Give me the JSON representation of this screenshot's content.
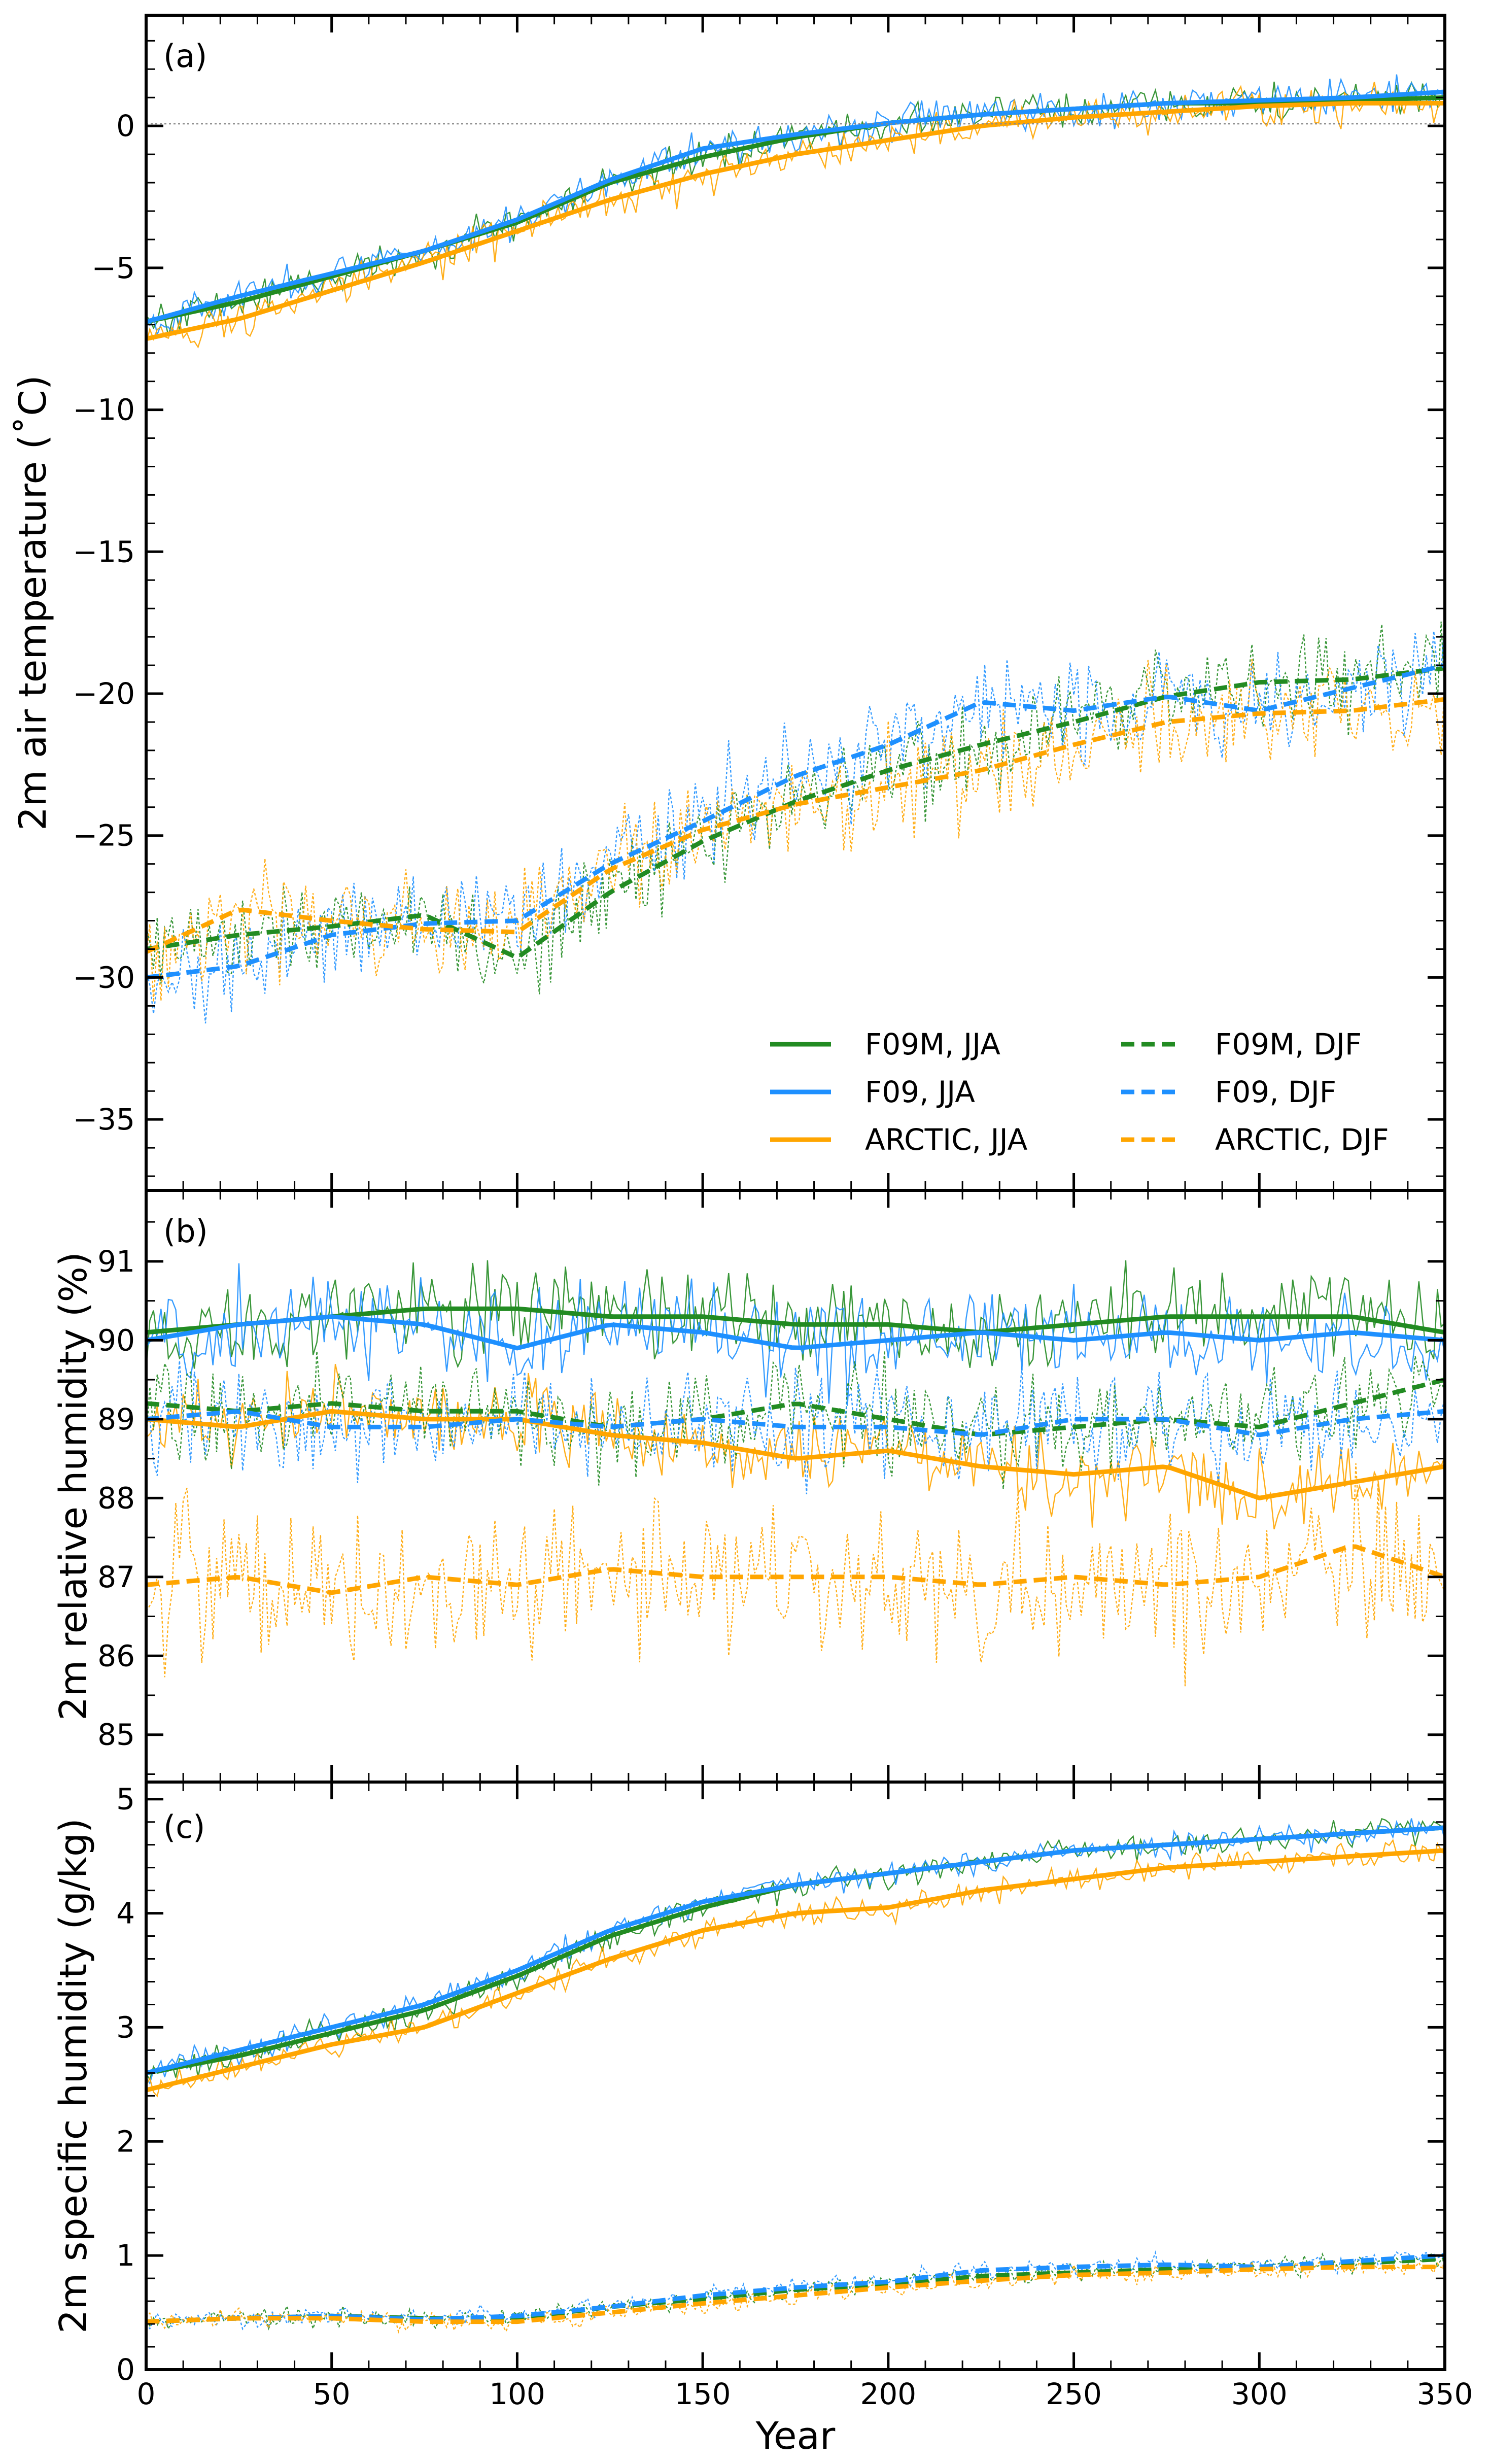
{
  "chart_data": {
    "type": "line",
    "xlabel": "Year",
    "xlim": [
      0,
      350
    ],
    "xticks": [
      0,
      50,
      100,
      150,
      200,
      250,
      300,
      350
    ],
    "series_styles": [
      {
        "name": "F09M, JJA",
        "color": "#228B22",
        "dash": false
      },
      {
        "name": "F09, JJA",
        "color": "#1E90FF",
        "dash": false
      },
      {
        "name": "ARCTIC, JJA",
        "color": "#FFA500",
        "dash": false
      },
      {
        "name": "F09M, DJF",
        "color": "#228B22",
        "dash": true
      },
      {
        "name": "F09, DJF",
        "color": "#1E90FF",
        "dash": true
      },
      {
        "name": "ARCTIC, DJF",
        "color": "#FFA500",
        "dash": true
      }
    ],
    "panels": [
      {
        "label": "(a)",
        "ylabel": "2m air temperature (˚C)",
        "ylim": [
          -37.5,
          3.9
        ],
        "yticks": [
          0,
          -5,
          -10,
          -15,
          -20,
          -25,
          -30,
          -35
        ],
        "ytick_labels": [
          "0",
          "−5",
          "−10",
          "−15",
          "−20",
          "−25",
          "−30",
          "−35"
        ],
        "minor_step": 1,
        "zero_line": true,
        "noise": [
          0.55,
          0.55,
          0.6,
          1.5,
          1.5,
          1.5
        ],
        "x": [
          0,
          25,
          50,
          75,
          100,
          125,
          150,
          175,
          200,
          225,
          250,
          275,
          300,
          325,
          350
        ],
        "series": [
          {
            "name": "F09M, JJA",
            "values": [
              -6.9,
              -6.2,
              -5.3,
              -4.4,
              -3.4,
              -2.0,
              -1.1,
              -0.4,
              0.1,
              0.4,
              0.6,
              0.8,
              0.8,
              0.9,
              1.0
            ]
          },
          {
            "name": "F09, JJA",
            "values": [
              -6.9,
              -6.0,
              -5.2,
              -4.4,
              -3.3,
              -1.9,
              -0.8,
              -0.3,
              0.1,
              0.4,
              0.6,
              0.8,
              0.9,
              1.0,
              1.2
            ]
          },
          {
            "name": "ARCTIC, JJA",
            "values": [
              -7.5,
              -6.8,
              -5.8,
              -4.8,
              -3.7,
              -2.6,
              -1.7,
              -1.0,
              -0.5,
              0.0,
              0.3,
              0.5,
              0.7,
              0.8,
              0.8
            ]
          },
          {
            "name": "F09M, DJF",
            "values": [
              -29.0,
              -28.5,
              -28.2,
              -27.8,
              -29.3,
              -27.0,
              -25.2,
              -23.8,
              -22.7,
              -21.8,
              -21.0,
              -20.1,
              -19.6,
              -19.5,
              -19.1
            ]
          },
          {
            "name": "F09, DJF",
            "values": [
              -30.0,
              -29.6,
              -28.5,
              -28.1,
              -28.0,
              -26.0,
              -24.5,
              -22.9,
              -21.8,
              -20.3,
              -20.6,
              -20.1,
              -20.6,
              -19.8,
              -19.0
            ]
          },
          {
            "name": "ARCTIC, DJF",
            "values": [
              -29.1,
              -27.6,
              -28.0,
              -28.3,
              -28.4,
              -26.2,
              -24.8,
              -23.9,
              -23.3,
              -22.7,
              -21.8,
              -21.0,
              -20.7,
              -20.6,
              -20.2
            ]
          }
        ]
      },
      {
        "label": "(b)",
        "ylabel": "2m relative humidity (%)",
        "ylim": [
          84.4,
          91.9
        ],
        "yticks": [
          85,
          86,
          87,
          88,
          89,
          90,
          91
        ],
        "ytick_labels": [
          "85",
          "86",
          "87",
          "88",
          "89",
          "90",
          "91"
        ],
        "minor_step": 0.5,
        "zero_line": false,
        "noise": [
          0.5,
          0.5,
          0.45,
          0.55,
          0.55,
          0.85
        ],
        "x": [
          0,
          25,
          50,
          75,
          100,
          125,
          150,
          175,
          200,
          225,
          250,
          275,
          300,
          325,
          350
        ],
        "series": [
          {
            "name": "F09M, JJA",
            "values": [
              90.1,
              90.2,
              90.3,
              90.4,
              90.4,
              90.3,
              90.3,
              90.2,
              90.2,
              90.1,
              90.2,
              90.3,
              90.3,
              90.3,
              90.1
            ]
          },
          {
            "name": "F09, JJA",
            "values": [
              90.0,
              90.2,
              90.3,
              90.2,
              89.9,
              90.2,
              90.1,
              89.9,
              90.0,
              90.1,
              90.0,
              90.1,
              90.0,
              90.1,
              90.0
            ]
          },
          {
            "name": "ARCTIC, JJA",
            "values": [
              89.0,
              88.9,
              89.1,
              89.0,
              89.0,
              88.8,
              88.7,
              88.5,
              88.6,
              88.4,
              88.3,
              88.4,
              88.0,
              88.2,
              88.4
            ]
          },
          {
            "name": "F09M, DJF",
            "values": [
              89.2,
              89.1,
              89.2,
              89.1,
              89.1,
              88.9,
              89.0,
              89.2,
              89.0,
              88.8,
              88.9,
              89.0,
              88.9,
              89.2,
              89.5
            ]
          },
          {
            "name": "F09, DJF",
            "values": [
              89.0,
              89.1,
              88.9,
              88.9,
              89.0,
              88.9,
              89.0,
              88.9,
              88.9,
              88.8,
              89.0,
              89.0,
              88.8,
              89.0,
              89.1
            ]
          },
          {
            "name": "ARCTIC, DJF",
            "values": [
              86.9,
              87.0,
              86.8,
              87.0,
              86.9,
              87.1,
              87.0,
              87.0,
              87.0,
              86.9,
              87.0,
              86.9,
              87.0,
              87.4,
              87.0
            ]
          }
        ]
      },
      {
        "label": "(c)",
        "ylabel": "2m specific humidity (g/kg)",
        "ylim": [
          0,
          5.15
        ],
        "yticks": [
          0,
          1,
          2,
          3,
          4,
          5
        ],
        "ytick_labels": [
          "0",
          "1",
          "2",
          "3",
          "4",
          "5"
        ],
        "minor_step": 0.2,
        "zero_line": false,
        "noise": [
          0.1,
          0.1,
          0.1,
          0.07,
          0.07,
          0.07
        ],
        "x": [
          0,
          25,
          50,
          75,
          100,
          125,
          150,
          175,
          200,
          225,
          250,
          275,
          300,
          325,
          350
        ],
        "series": [
          {
            "name": "F09M, JJA",
            "values": [
              2.6,
              2.75,
              2.95,
              3.15,
              3.45,
              3.8,
              4.05,
              4.25,
              4.35,
              4.45,
              4.55,
              4.6,
              4.65,
              4.7,
              4.75
            ]
          },
          {
            "name": "F09, JJA",
            "values": [
              2.6,
              2.8,
              3.0,
              3.2,
              3.5,
              3.85,
              4.1,
              4.25,
              4.35,
              4.45,
              4.55,
              4.6,
              4.65,
              4.7,
              4.75
            ]
          },
          {
            "name": "ARCTIC, JJA",
            "values": [
              2.45,
              2.65,
              2.85,
              3.0,
              3.3,
              3.6,
              3.85,
              4.0,
              4.05,
              4.2,
              4.3,
              4.4,
              4.45,
              4.5,
              4.55
            ]
          },
          {
            "name": "F09M, DJF",
            "values": [
              0.42,
              0.45,
              0.47,
              0.45,
              0.45,
              0.55,
              0.62,
              0.7,
              0.75,
              0.82,
              0.85,
              0.88,
              0.9,
              0.93,
              0.97
            ]
          },
          {
            "name": "F09, DJF",
            "values": [
              0.42,
              0.45,
              0.47,
              0.44,
              0.47,
              0.55,
              0.65,
              0.72,
              0.77,
              0.87,
              0.9,
              0.92,
              0.9,
              0.95,
              1.0
            ]
          },
          {
            "name": "ARCTIC, DJF",
            "values": [
              0.42,
              0.45,
              0.45,
              0.42,
              0.42,
              0.5,
              0.58,
              0.65,
              0.72,
              0.78,
              0.83,
              0.85,
              0.88,
              0.9,
              0.9
            ]
          }
        ]
      }
    ]
  }
}
